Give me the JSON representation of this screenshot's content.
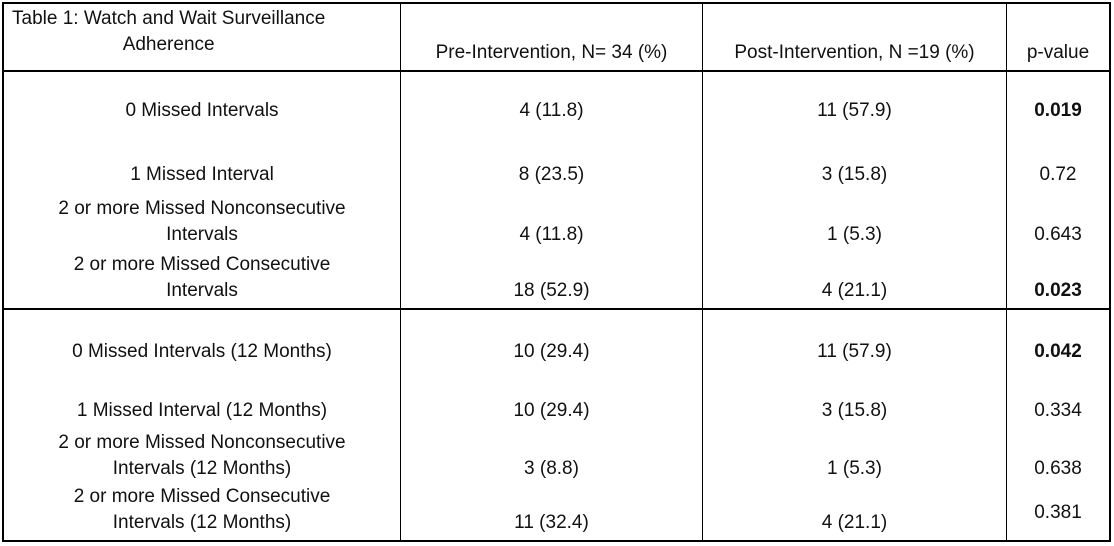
{
  "table": {
    "caption_line1": "Table 1: Watch and Wait Surveillance",
    "caption_line2": "Adherence",
    "headers": {
      "pre": "Pre-Intervention, N= 34 (%)",
      "post": "Post-Intervention, N =19 (%)",
      "pvalue": "p-value"
    },
    "rows": [
      {
        "label_line1": "0 Missed Intervals",
        "label_line2": "",
        "pre": "4 (11.8)",
        "post": "11 (57.9)",
        "p": "0.019",
        "p_bold": true
      },
      {
        "label_line1": "1 Missed Interval",
        "label_line2": "",
        "pre": "8 (23.5)",
        "post": "3 (15.8)",
        "p": "0.72",
        "p_bold": false
      },
      {
        "label_line1": "2 or more Missed Nonconsecutive",
        "label_line2": "Intervals",
        "pre": "4 (11.8)",
        "post": "1 (5.3)",
        "p": "0.643",
        "p_bold": false
      },
      {
        "label_line1": "2 or more Missed Consecutive",
        "label_line2": "Intervals",
        "pre": "18 (52.9)",
        "post": "4 (21.1)",
        "p": "0.023",
        "p_bold": true
      },
      {
        "label_line1": "0 Missed Intervals (12 Months)",
        "label_line2": "",
        "pre": "10 (29.4)",
        "post": "11 (57.9)",
        "p": "0.042",
        "p_bold": true
      },
      {
        "label_line1": "1 Missed Interval (12 Months)",
        "label_line2": "",
        "pre": "10 (29.4)",
        "post": "3 (15.8)",
        "p": "0.334",
        "p_bold": false
      },
      {
        "label_line1": "2 or more Missed Nonconsecutive",
        "label_line2": "Intervals (12 Months)",
        "pre": "3 (8.8)",
        "post": "1 (5.3)",
        "p": "0.638",
        "p_bold": false
      },
      {
        "label_line1": "2 or more Missed Consecutive",
        "label_line2": "Intervals (12 Months)",
        "pre": "11 (32.4)",
        "post": "4 (21.1)",
        "p": "0.381",
        "p_bold": false
      }
    ]
  }
}
